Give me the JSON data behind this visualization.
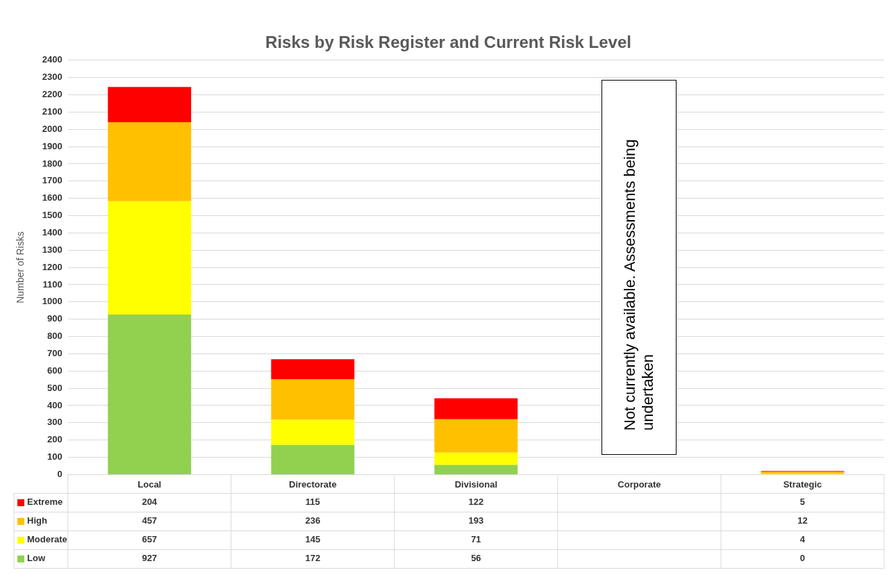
{
  "chart_data": {
    "type": "bar",
    "title": "Risks by Risk Register and Current Risk Level",
    "ylabel": "Number of Risks",
    "categories": [
      "Local",
      "Directorate",
      "Divisional",
      "Corporate",
      "Strategic"
    ],
    "stacked": true,
    "series": [
      {
        "name": "Low",
        "color": "#92d050",
        "values": [
          927,
          172,
          56,
          null,
          0
        ]
      },
      {
        "name": "Moderate",
        "color": "#ffff00",
        "values": [
          657,
          145,
          71,
          null,
          4
        ]
      },
      {
        "name": "High",
        "color": "#ffc000",
        "values": [
          457,
          236,
          193,
          null,
          12
        ]
      },
      {
        "name": "Extreme",
        "color": "#ff0000",
        "values": [
          204,
          115,
          122,
          null,
          5
        ]
      }
    ],
    "ylim": [
      0,
      2400
    ],
    "yticks": [
      0,
      100,
      200,
      300,
      400,
      500,
      600,
      700,
      800,
      900,
      1000,
      1100,
      1200,
      1300,
      1400,
      1500,
      1600,
      1700,
      1800,
      1900,
      2000,
      2100,
      2200,
      2300,
      2400
    ],
    "grid": "y",
    "legend": "bottom",
    "data_labels": true,
    "annotations": [
      "Not currently available. Assessments being undertaken"
    ]
  }
}
